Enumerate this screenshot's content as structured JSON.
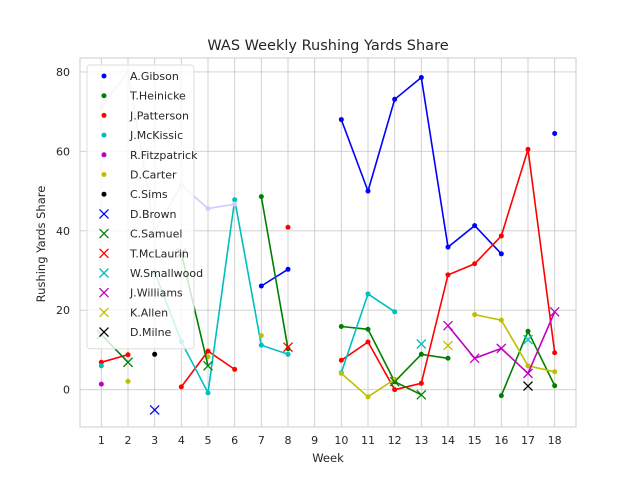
{
  "chart_data": {
    "type": "line",
    "title": "WAS Weekly Rushing Yards Share",
    "xlabel": "Week",
    "ylabel": "Rushing Yards Share",
    "xlim": [
      0.2,
      18.8
    ],
    "ylim": [
      -9.4,
      83.5
    ],
    "xticks": [
      1,
      2,
      3,
      4,
      5,
      6,
      7,
      8,
      9,
      10,
      11,
      12,
      13,
      14,
      15,
      16,
      17,
      18
    ],
    "yticks": [
      0,
      20,
      40,
      60,
      80
    ],
    "grid": true,
    "legend_position": "upper-left",
    "series": [
      {
        "name": "A.Gibson",
        "color": "#0000ff",
        "marker": "dot",
        "points": [
          [
            7,
            26.1
          ],
          [
            8,
            30.3
          ],
          [
            10,
            68.0
          ],
          [
            11,
            50.0
          ],
          [
            12,
            73.1
          ],
          [
            13,
            78.6
          ],
          [
            14,
            35.9
          ],
          [
            15,
            41.3
          ],
          [
            16,
            34.2
          ],
          [
            18,
            64.5
          ]
        ]
      },
      {
        "name": "T.Heinicke",
        "color": "#008000",
        "marker": "dot",
        "points": [
          [
            7,
            48.6
          ],
          [
            8,
            10.3
          ],
          [
            10,
            15.9
          ],
          [
            11,
            15.2
          ],
          [
            12,
            2.0
          ],
          [
            13,
            8.9
          ],
          [
            14,
            7.9
          ],
          [
            16,
            -1.5
          ],
          [
            17,
            14.7
          ],
          [
            18,
            1.0
          ]
        ]
      },
      {
        "name": "J.Patterson",
        "color": "#ff0000",
        "marker": "dot",
        "points": [
          [
            1,
            6.9
          ],
          [
            2,
            8.8
          ],
          [
            4,
            0.7
          ],
          [
            5,
            9.7
          ],
          [
            6,
            5.1
          ],
          [
            8,
            40.9
          ],
          [
            10,
            7.4
          ],
          [
            11,
            12.0
          ],
          [
            12,
            0.0
          ],
          [
            13,
            1.6
          ],
          [
            14,
            28.9
          ],
          [
            15,
            31.7
          ],
          [
            16,
            38.7
          ],
          [
            17,
            60.5
          ],
          [
            18,
            9.3
          ]
        ]
      },
      {
        "name": "J.McKissic",
        "color": "#00bfbf",
        "marker": "dot",
        "points": [
          [
            1,
            6.0
          ],
          [
            3,
            29.6
          ],
          [
            4,
            12.1
          ],
          [
            5,
            -0.8
          ],
          [
            6,
            47.8
          ],
          [
            7,
            11.2
          ],
          [
            8,
            8.9
          ],
          [
            10,
            4.3
          ],
          [
            11,
            24.1
          ],
          [
            12,
            19.6
          ]
        ]
      },
      {
        "name": "R.Fitzpatrick",
        "color": "#bf00bf",
        "marker": "dot",
        "points": [
          [
            1,
            1.4
          ]
        ]
      },
      {
        "name": "D.Carter",
        "color": "#bfbf00",
        "marker": "dot",
        "points": [
          [
            2,
            2.1
          ],
          [
            5,
            8.3
          ],
          [
            7,
            13.6
          ],
          [
            10,
            4.1
          ],
          [
            11,
            -1.8
          ],
          [
            12,
            2.6
          ],
          [
            15,
            18.9
          ],
          [
            16,
            17.5
          ],
          [
            17,
            6.0
          ],
          [
            18,
            4.5
          ]
        ]
      },
      {
        "name": "C.Sims",
        "color": "#000000",
        "marker": "dot",
        "points": [
          [
            3,
            8.9
          ]
        ]
      },
      {
        "name": "D.Brown",
        "color": "#0000ff",
        "marker": "x",
        "points": [
          [
            3,
            -5.1
          ]
        ]
      },
      {
        "name": "C.Samuel",
        "color": "#008000",
        "marker": "x",
        "points": [
          [
            1,
            13.9
          ],
          [
            2,
            6.9
          ],
          [
            4,
            34.4
          ],
          [
            5,
            6.0
          ],
          [
            12,
            2.0
          ],
          [
            13,
            -1.3
          ]
        ]
      },
      {
        "name": "T.McLaurin",
        "color": "#ff0000",
        "marker": "x",
        "points": [
          [
            8,
            10.7
          ]
        ]
      },
      {
        "name": "W.Smallwood",
        "color": "#00bfbf",
        "marker": "x",
        "points": [
          [
            13,
            11.5
          ],
          [
            17,
            12.6
          ]
        ]
      },
      {
        "name": "J.Williams",
        "color": "#bf00bf",
        "marker": "x",
        "points": [
          [
            14,
            16.1
          ],
          [
            15,
            7.9
          ],
          [
            16,
            10.4
          ],
          [
            17,
            4.1
          ],
          [
            18,
            19.6
          ]
        ]
      },
      {
        "name": "K.Allen",
        "color": "#bfbf00",
        "marker": "x",
        "points": [
          [
            14,
            11.1
          ]
        ]
      },
      {
        "name": "D.Milne",
        "color": "#000000",
        "marker": "x",
        "points": [
          [
            17,
            0.9
          ]
        ]
      },
      {
        "name": "",
        "color": "#ccccff",
        "marker": "dot",
        "points": [
          [
            1,
            71.2
          ],
          [
            2,
            80.0
          ],
          [
            3,
            40.0
          ],
          [
            4,
            51.5
          ],
          [
            5,
            45.6
          ],
          [
            6,
            46.7
          ]
        ]
      }
    ]
  }
}
